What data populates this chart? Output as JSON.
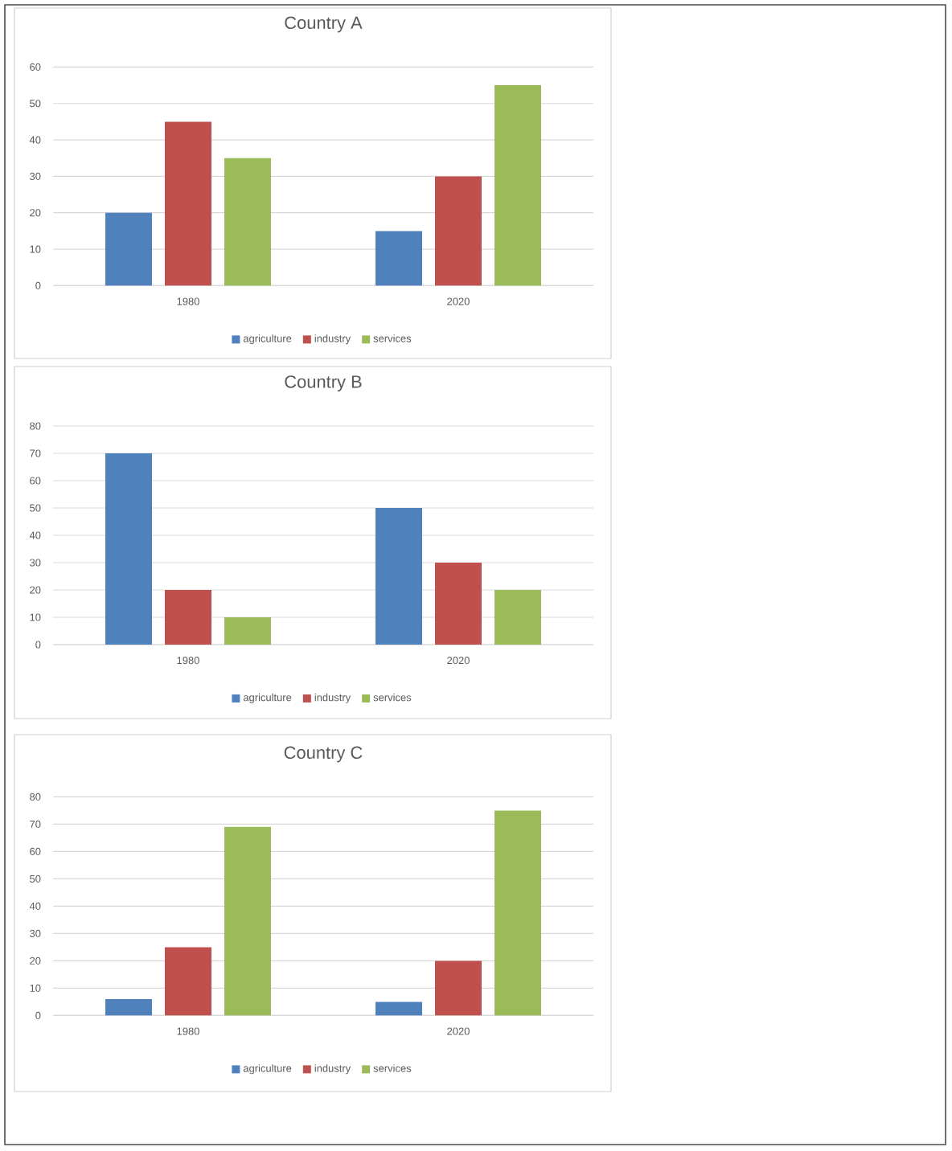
{
  "chart_data": [
    {
      "type": "bar",
      "title": "Country A",
      "categories": [
        "1980",
        "2020"
      ],
      "series": [
        {
          "name": "agriculture",
          "color": "#4f81bd",
          "values": [
            20,
            15
          ]
        },
        {
          "name": "industry",
          "color": "#c0504d",
          "values": [
            45,
            30
          ]
        },
        {
          "name": "services",
          "color": "#9bbb59",
          "values": [
            35,
            55
          ]
        }
      ],
      "ylim": [
        0,
        60
      ],
      "yticks": [
        0,
        10,
        20,
        30,
        40,
        50,
        60
      ],
      "grid": "y",
      "legend": "bottom"
    },
    {
      "type": "bar",
      "title": "Country B",
      "categories": [
        "1980",
        "2020"
      ],
      "series": [
        {
          "name": "agriculture",
          "color": "#4f81bd",
          "values": [
            70,
            50
          ]
        },
        {
          "name": "industry",
          "color": "#c0504d",
          "values": [
            20,
            30
          ]
        },
        {
          "name": "services",
          "color": "#9bbb59",
          "values": [
            10,
            20
          ]
        }
      ],
      "ylim": [
        0,
        80
      ],
      "yticks": [
        0,
        10,
        20,
        30,
        40,
        50,
        60,
        70,
        80
      ],
      "grid": "y",
      "legend": "bottom"
    },
    {
      "type": "bar",
      "title": "Country C",
      "categories": [
        "1980",
        "2020"
      ],
      "series": [
        {
          "name": "agriculture",
          "color": "#4f81bd",
          "values": [
            6,
            5
          ]
        },
        {
          "name": "industry",
          "color": "#c0504d",
          "values": [
            25,
            20
          ]
        },
        {
          "name": "services",
          "color": "#9bbb59",
          "values": [
            69,
            75
          ]
        }
      ],
      "ylim": [
        0,
        80
      ],
      "yticks": [
        0,
        10,
        20,
        30,
        40,
        50,
        60,
        70,
        80
      ],
      "grid": "y",
      "legend": "bottom"
    }
  ]
}
